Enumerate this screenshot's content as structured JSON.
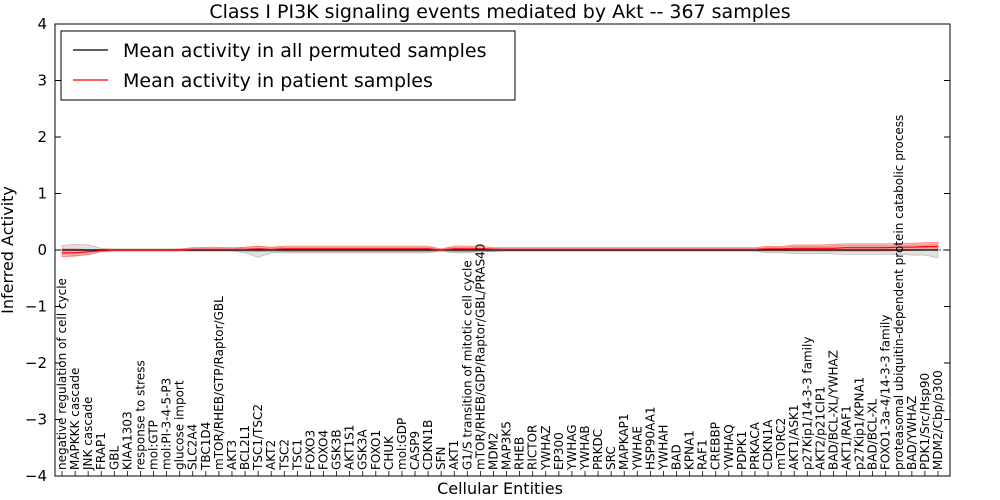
{
  "chart_data": {
    "type": "line",
    "title": "Class I PI3K signaling events mediated by Akt -- 367 samples",
    "xlabel": "Cellular Entities",
    "ylabel": "Inferred Activity",
    "ylim": [
      -4,
      4
    ],
    "yticks": [
      "4",
      "3",
      "2",
      "1",
      "0",
      "−1",
      "−2",
      "−3",
      "−4"
    ],
    "yticks_values": [
      4,
      3,
      2,
      1,
      0,
      -1,
      -2,
      -3,
      -4
    ],
    "legend_position": "top-left",
    "categories": [
      "negative regulation of cell cycle",
      "MAPKKK cascade",
      "JNK cascade",
      "FRAP1",
      "GBL",
      "KIAA1303",
      "response to stress",
      "mol:GTP",
      "mol:PI-3-4-5-P3",
      "glucose import",
      "SLC2A4",
      "TBC1D4",
      "mTOR/RHEB/GTP/Raptor/GBL",
      "AKT3",
      "BCL2L1",
      "TSC1/TSC2",
      "AKT2",
      "TSC2",
      "TSC1",
      "FOXO3",
      "FOXO4",
      "GSK3B",
      "AKT1S1",
      "GSK3A",
      "FOXO1",
      "CHUK",
      "mol:GDP",
      "CASP9",
      "CDKN1B",
      "SFN",
      "AKT1",
      "G1/S transition of mitotic cell cycle",
      "mTOR/RHEB/GDP/Raptor/GBL/PRAS40",
      "MDM2",
      "MAP3K5",
      "RHEB",
      "RICTOR",
      "YWHAZ",
      "EP300",
      "YWHAG",
      "YWHAB",
      "PRKDC",
      "SRC",
      "MAPKAP1",
      "YWHAE",
      "HSP90AA1",
      "YWHAH",
      "BAD",
      "KPNA1",
      "RAF1",
      "CREBBP",
      "YWHAQ",
      "PDPK1",
      "PRKACA",
      "CDKN1A",
      "mTORC2",
      "AKT1/ASK1",
      "p27Kip1/14-3-3 family",
      "AKT2/p21CIP1",
      "BAD/BCL-XL/YWHAZ",
      "AKT1/RAF1",
      "p27Kip1/KPNA1",
      "BAD/BCL-XL",
      "FOXO1-3a-4/14-3-3 family",
      "proteasomal ubiquitin-dependent protein catabolic process",
      "BAD/YWHAZ",
      "PDK1/Src/Hsp90",
      "MDM2/Cbp/p300"
    ],
    "series": [
      {
        "name": "Mean activity in all permuted samples",
        "color": "#000000",
        "values": [
          0.0,
          0.0,
          0.0,
          0.0,
          0.0,
          0.0,
          0.0,
          0.0,
          0.0,
          0.0,
          0.0,
          0.0,
          0.0,
          0.0,
          0.0,
          0.0,
          0.0,
          0.0,
          0.0,
          0.0,
          0.0,
          0.0,
          0.0,
          0.0,
          0.0,
          0.0,
          0.0,
          0.0,
          0.0,
          0.0,
          0.0,
          0.0,
          0.0,
          0.0,
          0.0,
          0.0,
          0.0,
          0.0,
          0.0,
          0.0,
          0.0,
          0.0,
          0.0,
          0.0,
          0.0,
          0.0,
          0.0,
          0.0,
          0.0,
          0.0,
          0.0,
          0.0,
          0.0,
          0.0,
          0.0,
          0.0,
          0.0,
          0.0,
          0.0,
          0.0,
          0.0,
          0.0,
          0.0,
          0.0,
          0.0,
          0.0,
          0.0,
          0.0
        ],
        "band_upper": [
          0.08,
          0.1,
          0.09,
          0.03,
          0.02,
          0.02,
          0.02,
          0.02,
          0.02,
          0.02,
          0.02,
          0.02,
          0.02,
          0.02,
          0.05,
          0.06,
          0.05,
          0.05,
          0.05,
          0.05,
          0.05,
          0.05,
          0.05,
          0.05,
          0.05,
          0.05,
          0.05,
          0.05,
          0.05,
          0.02,
          0.05,
          0.05,
          0.03,
          0.03,
          0.02,
          0.02,
          0.02,
          0.02,
          0.02,
          0.02,
          0.02,
          0.02,
          0.02,
          0.02,
          0.02,
          0.02,
          0.02,
          0.02,
          0.02,
          0.02,
          0.02,
          0.02,
          0.02,
          0.02,
          0.05,
          0.05,
          0.06,
          0.07,
          0.06,
          0.07,
          0.08,
          0.08,
          0.08,
          0.08,
          0.08,
          0.09,
          0.09,
          0.1
        ],
        "band_lower": [
          -0.08,
          -0.1,
          -0.09,
          -0.03,
          -0.02,
          -0.02,
          -0.02,
          -0.02,
          -0.02,
          -0.02,
          -0.02,
          -0.02,
          -0.02,
          -0.02,
          -0.05,
          -0.13,
          -0.05,
          -0.05,
          -0.05,
          -0.05,
          -0.05,
          -0.05,
          -0.05,
          -0.05,
          -0.05,
          -0.05,
          -0.05,
          -0.05,
          -0.05,
          -0.02,
          -0.05,
          -0.05,
          -0.03,
          -0.03,
          -0.02,
          -0.02,
          -0.02,
          -0.02,
          -0.02,
          -0.02,
          -0.02,
          -0.02,
          -0.02,
          -0.02,
          -0.02,
          -0.02,
          -0.02,
          -0.02,
          -0.02,
          -0.02,
          -0.02,
          -0.02,
          -0.02,
          -0.02,
          -0.05,
          -0.05,
          -0.06,
          -0.07,
          -0.06,
          -0.07,
          -0.08,
          -0.08,
          -0.08,
          -0.08,
          -0.08,
          -0.09,
          -0.09,
          -0.14
        ]
      },
      {
        "name": "Mean activity in patient samples",
        "color": "#ff0000",
        "values": [
          -0.05,
          -0.05,
          -0.03,
          -0.01,
          0.0,
          0.0,
          0.0,
          0.0,
          0.0,
          0.0,
          0.01,
          0.01,
          0.01,
          0.01,
          0.01,
          0.02,
          0.01,
          0.02,
          0.02,
          0.02,
          0.02,
          0.02,
          0.02,
          0.02,
          0.02,
          0.02,
          0.02,
          0.02,
          0.02,
          0.0,
          0.02,
          0.02,
          0.02,
          0.01,
          0.01,
          0.01,
          0.01,
          0.01,
          0.01,
          0.01,
          0.01,
          0.01,
          0.01,
          0.01,
          0.01,
          0.01,
          0.01,
          0.01,
          0.01,
          0.01,
          0.01,
          0.01,
          0.01,
          0.01,
          0.02,
          0.02,
          0.03,
          0.03,
          0.03,
          0.03,
          0.04,
          0.04,
          0.04,
          0.04,
          0.05,
          0.05,
          0.06,
          0.06
        ],
        "band_upper": [
          0.02,
          0.02,
          0.01,
          0.01,
          0.01,
          0.01,
          0.01,
          0.01,
          0.01,
          0.02,
          0.04,
          0.05,
          0.05,
          0.04,
          0.05,
          0.07,
          0.05,
          0.07,
          0.07,
          0.07,
          0.07,
          0.07,
          0.07,
          0.07,
          0.07,
          0.07,
          0.07,
          0.07,
          0.07,
          0.02,
          0.07,
          0.07,
          0.07,
          0.04,
          0.04,
          0.04,
          0.04,
          0.04,
          0.04,
          0.04,
          0.04,
          0.04,
          0.04,
          0.04,
          0.04,
          0.04,
          0.04,
          0.04,
          0.04,
          0.04,
          0.04,
          0.04,
          0.04,
          0.04,
          0.07,
          0.06,
          0.09,
          0.09,
          0.09,
          0.1,
          0.11,
          0.11,
          0.11,
          0.11,
          0.12,
          0.12,
          0.13,
          0.14
        ],
        "band_lower": [
          -0.12,
          -0.11,
          -0.08,
          -0.03,
          -0.01,
          -0.01,
          -0.01,
          -0.01,
          -0.01,
          -0.01,
          -0.02,
          -0.02,
          -0.02,
          -0.02,
          -0.02,
          -0.03,
          -0.02,
          -0.03,
          -0.03,
          -0.03,
          -0.03,
          -0.03,
          -0.03,
          -0.03,
          -0.03,
          -0.03,
          -0.03,
          -0.03,
          -0.03,
          -0.02,
          -0.03,
          -0.03,
          -0.03,
          -0.02,
          -0.02,
          -0.02,
          -0.02,
          -0.02,
          -0.02,
          -0.02,
          -0.02,
          -0.02,
          -0.02,
          -0.02,
          -0.02,
          -0.02,
          -0.02,
          -0.02,
          -0.02,
          -0.02,
          -0.02,
          -0.02,
          -0.02,
          -0.02,
          -0.02,
          -0.02,
          -0.02,
          -0.02,
          -0.02,
          -0.02,
          -0.02,
          -0.02,
          -0.02,
          -0.02,
          -0.01,
          -0.01,
          0.0,
          -0.01
        ]
      }
    ]
  }
}
